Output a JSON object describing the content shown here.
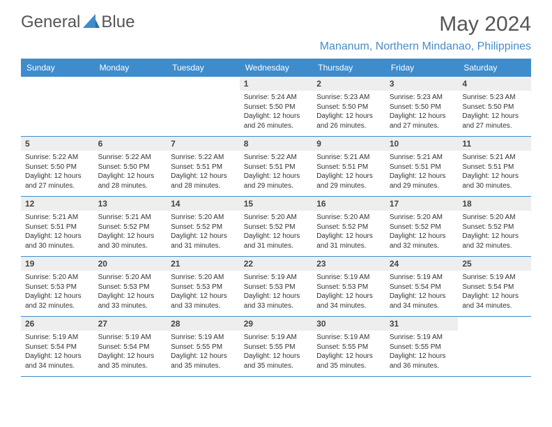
{
  "brand": {
    "prefix": "General",
    "suffix": "Blue"
  },
  "title": "May 2024",
  "location": "Mananum, Northern Mindanao, Philippines",
  "colors": {
    "header_bg": "#3e8ccc",
    "header_text": "#ffffff",
    "daynum_bg": "#eeeeee",
    "border": "#3e8ccc",
    "title_text": "#555555",
    "location_text": "#4a8bc5",
    "logo_accent": "#3e8ccc"
  },
  "day_headers": [
    "Sunday",
    "Monday",
    "Tuesday",
    "Wednesday",
    "Thursday",
    "Friday",
    "Saturday"
  ],
  "weeks": [
    [
      {
        "num": "",
        "lines": []
      },
      {
        "num": "",
        "lines": []
      },
      {
        "num": "",
        "lines": []
      },
      {
        "num": "1",
        "lines": [
          "Sunrise: 5:24 AM",
          "Sunset: 5:50 PM",
          "Daylight: 12 hours and 26 minutes."
        ]
      },
      {
        "num": "2",
        "lines": [
          "Sunrise: 5:23 AM",
          "Sunset: 5:50 PM",
          "Daylight: 12 hours and 26 minutes."
        ]
      },
      {
        "num": "3",
        "lines": [
          "Sunrise: 5:23 AM",
          "Sunset: 5:50 PM",
          "Daylight: 12 hours and 27 minutes."
        ]
      },
      {
        "num": "4",
        "lines": [
          "Sunrise: 5:23 AM",
          "Sunset: 5:50 PM",
          "Daylight: 12 hours and 27 minutes."
        ]
      }
    ],
    [
      {
        "num": "5",
        "lines": [
          "Sunrise: 5:22 AM",
          "Sunset: 5:50 PM",
          "Daylight: 12 hours and 27 minutes."
        ]
      },
      {
        "num": "6",
        "lines": [
          "Sunrise: 5:22 AM",
          "Sunset: 5:50 PM",
          "Daylight: 12 hours and 28 minutes."
        ]
      },
      {
        "num": "7",
        "lines": [
          "Sunrise: 5:22 AM",
          "Sunset: 5:51 PM",
          "Daylight: 12 hours and 28 minutes."
        ]
      },
      {
        "num": "8",
        "lines": [
          "Sunrise: 5:22 AM",
          "Sunset: 5:51 PM",
          "Daylight: 12 hours and 29 minutes."
        ]
      },
      {
        "num": "9",
        "lines": [
          "Sunrise: 5:21 AM",
          "Sunset: 5:51 PM",
          "Daylight: 12 hours and 29 minutes."
        ]
      },
      {
        "num": "10",
        "lines": [
          "Sunrise: 5:21 AM",
          "Sunset: 5:51 PM",
          "Daylight: 12 hours and 29 minutes."
        ]
      },
      {
        "num": "11",
        "lines": [
          "Sunrise: 5:21 AM",
          "Sunset: 5:51 PM",
          "Daylight: 12 hours and 30 minutes."
        ]
      }
    ],
    [
      {
        "num": "12",
        "lines": [
          "Sunrise: 5:21 AM",
          "Sunset: 5:51 PM",
          "Daylight: 12 hours and 30 minutes."
        ]
      },
      {
        "num": "13",
        "lines": [
          "Sunrise: 5:21 AM",
          "Sunset: 5:52 PM",
          "Daylight: 12 hours and 30 minutes."
        ]
      },
      {
        "num": "14",
        "lines": [
          "Sunrise: 5:20 AM",
          "Sunset: 5:52 PM",
          "Daylight: 12 hours and 31 minutes."
        ]
      },
      {
        "num": "15",
        "lines": [
          "Sunrise: 5:20 AM",
          "Sunset: 5:52 PM",
          "Daylight: 12 hours and 31 minutes."
        ]
      },
      {
        "num": "16",
        "lines": [
          "Sunrise: 5:20 AM",
          "Sunset: 5:52 PM",
          "Daylight: 12 hours and 31 minutes."
        ]
      },
      {
        "num": "17",
        "lines": [
          "Sunrise: 5:20 AM",
          "Sunset: 5:52 PM",
          "Daylight: 12 hours and 32 minutes."
        ]
      },
      {
        "num": "18",
        "lines": [
          "Sunrise: 5:20 AM",
          "Sunset: 5:52 PM",
          "Daylight: 12 hours and 32 minutes."
        ]
      }
    ],
    [
      {
        "num": "19",
        "lines": [
          "Sunrise: 5:20 AM",
          "Sunset: 5:53 PM",
          "Daylight: 12 hours and 32 minutes."
        ]
      },
      {
        "num": "20",
        "lines": [
          "Sunrise: 5:20 AM",
          "Sunset: 5:53 PM",
          "Daylight: 12 hours and 33 minutes."
        ]
      },
      {
        "num": "21",
        "lines": [
          "Sunrise: 5:20 AM",
          "Sunset: 5:53 PM",
          "Daylight: 12 hours and 33 minutes."
        ]
      },
      {
        "num": "22",
        "lines": [
          "Sunrise: 5:19 AM",
          "Sunset: 5:53 PM",
          "Daylight: 12 hours and 33 minutes."
        ]
      },
      {
        "num": "23",
        "lines": [
          "Sunrise: 5:19 AM",
          "Sunset: 5:53 PM",
          "Daylight: 12 hours and 34 minutes."
        ]
      },
      {
        "num": "24",
        "lines": [
          "Sunrise: 5:19 AM",
          "Sunset: 5:54 PM",
          "Daylight: 12 hours and 34 minutes."
        ]
      },
      {
        "num": "25",
        "lines": [
          "Sunrise: 5:19 AM",
          "Sunset: 5:54 PM",
          "Daylight: 12 hours and 34 minutes."
        ]
      }
    ],
    [
      {
        "num": "26",
        "lines": [
          "Sunrise: 5:19 AM",
          "Sunset: 5:54 PM",
          "Daylight: 12 hours and 34 minutes."
        ]
      },
      {
        "num": "27",
        "lines": [
          "Sunrise: 5:19 AM",
          "Sunset: 5:54 PM",
          "Daylight: 12 hours and 35 minutes."
        ]
      },
      {
        "num": "28",
        "lines": [
          "Sunrise: 5:19 AM",
          "Sunset: 5:55 PM",
          "Daylight: 12 hours and 35 minutes."
        ]
      },
      {
        "num": "29",
        "lines": [
          "Sunrise: 5:19 AM",
          "Sunset: 5:55 PM",
          "Daylight: 12 hours and 35 minutes."
        ]
      },
      {
        "num": "30",
        "lines": [
          "Sunrise: 5:19 AM",
          "Sunset: 5:55 PM",
          "Daylight: 12 hours and 35 minutes."
        ]
      },
      {
        "num": "31",
        "lines": [
          "Sunrise: 5:19 AM",
          "Sunset: 5:55 PM",
          "Daylight: 12 hours and 36 minutes."
        ]
      },
      {
        "num": "",
        "lines": []
      }
    ]
  ]
}
